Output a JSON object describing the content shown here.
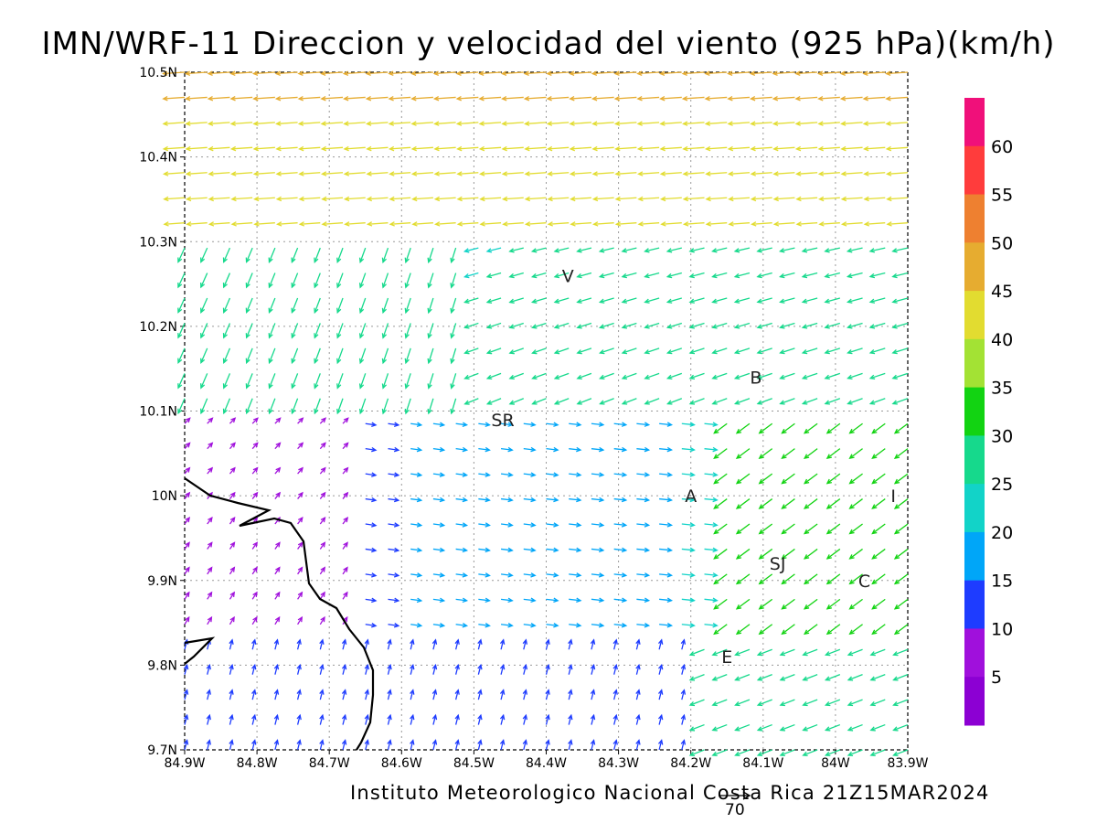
{
  "title": "IMN/WRF-11 Direccion y velocidad del viento (925 hPa)(km/h)",
  "credit": "Instituto Meteorologico Nacional Costa Rica 21Z15MAR2024",
  "reference_vector_label": "70",
  "map": {
    "lon_range": [
      -84.9,
      -83.9
    ],
    "lat_range": [
      9.7,
      10.5
    ],
    "lon_tick_labels": [
      "84.9W",
      "84.8W",
      "84.7W",
      "84.6W",
      "84.5W",
      "84.4W",
      "84.3W",
      "84.2W",
      "84.1W",
      "84W",
      "83.9W"
    ],
    "lat_tick_labels": [
      "10.5N",
      "10.4N",
      "10.3N",
      "10.2N",
      "10.1N",
      "10N",
      "9.9N",
      "9.8N",
      "9.7N"
    ],
    "grid": true,
    "places": [
      {
        "label": "V",
        "lon": -84.37,
        "lat": 10.26
      },
      {
        "label": "SR",
        "lon": -84.46,
        "lat": 10.09
      },
      {
        "label": "B",
        "lon": -84.11,
        "lat": 10.14
      },
      {
        "label": "A",
        "lon": -84.2,
        "lat": 10.0
      },
      {
        "label": "I",
        "lon": -83.92,
        "lat": 10.0
      },
      {
        "label": "SJ",
        "lon": -84.08,
        "lat": 9.92
      },
      {
        "label": "C",
        "lon": -83.96,
        "lat": 9.9
      },
      {
        "label": "E",
        "lon": -84.15,
        "lat": 9.81
      }
    ]
  },
  "colorbar": {
    "labels": [
      "60",
      "55",
      "50",
      "45",
      "40",
      "35",
      "30",
      "25",
      "20",
      "15",
      "10",
      "5"
    ],
    "colors": [
      "#f0107a",
      "#ff3c3c",
      "#ee8030",
      "#e6ac30",
      "#e2dc30",
      "#a3e234",
      "#12d312",
      "#16d98c",
      "#12d3c8",
      "#00a6f8",
      "#1e3cff",
      "#a010dc",
      "#8c00d3"
    ]
  }
}
